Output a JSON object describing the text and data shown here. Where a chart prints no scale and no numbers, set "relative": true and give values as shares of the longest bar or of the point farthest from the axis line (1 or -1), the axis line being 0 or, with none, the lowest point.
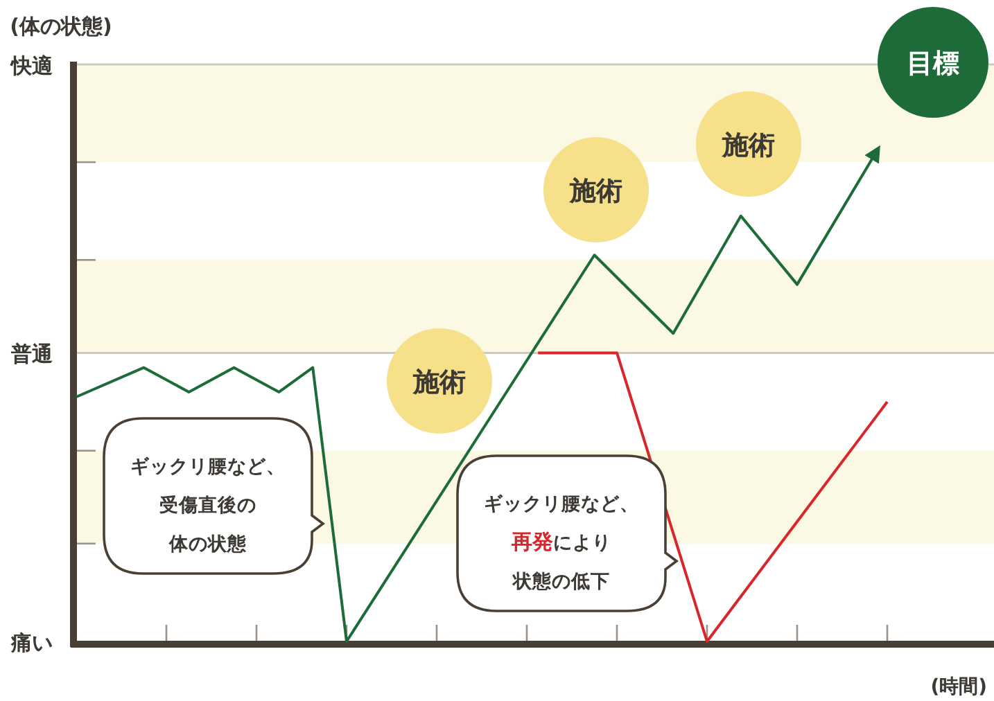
{
  "chart_data": {
    "type": "line",
    "xlabel": "(時間)",
    "relative": true,
    "categories": [
      null,
      null,
      null,
      null,
      null,
      null,
      null,
      null,
      null,
      null,
      null,
      null,
      null,
      null,
      null,
      null,
      null,
      null,
      null,
      null,
      null,
      null,
      null,
      null,
      null,
      null,
      null,
      null,
      null,
      null,
      null,
      null,
      null,
      null,
      null,
      null,
      null,
      null,
      null,
      null,
      null,
      null,
      null,
      null,
      null,
      null,
      null,
      null,
      null,
      null,
      null,
      null,
      null,
      null,
      null,
      null,
      null,
      null,
      null,
      null,
      null,
      null,
      null,
      null,
      null,
      null,
      null,
      null,
      null,
      null,
      null,
      null,
      null
    ],
    "series": [
      {
        "color": "#1e6b3a",
        "values": [
          0.5,
          null,
          null,
          null,
          null,
          null,
          0.56,
          null,
          null,
          null,
          0.51,
          null,
          null,
          null,
          0.56,
          null,
          null,
          null,
          0.51,
          null,
          null,
          0.56,
          null,
          null,
          0,
          null,
          null,
          null,
          null,
          null,
          null,
          null,
          null,
          null,
          null,
          null,
          null,
          null,
          null,
          null,
          null,
          null,
          null,
          null,
          null,
          null,
          0.79,
          null,
          null,
          null,
          null,
          null,
          null,
          0.63,
          null,
          null,
          null,
          null,
          null,
          0.87,
          null,
          null,
          null,
          null,
          0.73,
          null,
          null,
          null,
          null,
          null,
          null,
          1,
          null
        ]
      },
      {
        "color": "#d9262b",
        "values": [
          null,
          null,
          null,
          null,
          null,
          null,
          null,
          null,
          null,
          null,
          null,
          null,
          null,
          null,
          null,
          null,
          null,
          null,
          null,
          null,
          null,
          null,
          null,
          null,
          null,
          null,
          null,
          null,
          null,
          null,
          null,
          null,
          null,
          null,
          null,
          null,
          null,
          null,
          null,
          null,
          null,
          0.59,
          null,
          null,
          null,
          null,
          null,
          null,
          0.59,
          null,
          null,
          null,
          null,
          null,
          null,
          null,
          0,
          null,
          null,
          null,
          null,
          null,
          null,
          null,
          null,
          null,
          null,
          null,
          null,
          null,
          null,
          null,
          0.49
        ]
      }
    ],
    "bands": [
      {
        "axis": "y",
        "from": 0.98,
        "to": 1.18,
        "color": "#fbf8e4"
      },
      {
        "axis": "y",
        "from": 0.59,
        "to": 0.78,
        "color": "#fbf8e4"
      },
      {
        "axis": "y",
        "from": 0.2,
        "to": 0.39,
        "color": "#fbf8e4"
      }
    ],
    "ref_lines": [
      {
        "axis": "y",
        "value": 1.18,
        "label": "快適",
        "color": "#cfc9c0"
      },
      {
        "axis": "y",
        "value": 0.59,
        "label": "普通",
        "color": "#cfc9c0"
      }
    ],
    "annotations": [
      "ギックリ腰など、受傷直後の体の状態",
      "ギックリ腰など、**再発**により状態の低下",
      "施術",
      "施術",
      "施術",
      "目標",
      "痛い",
      "(体の状態)"
    ]
  }
}
